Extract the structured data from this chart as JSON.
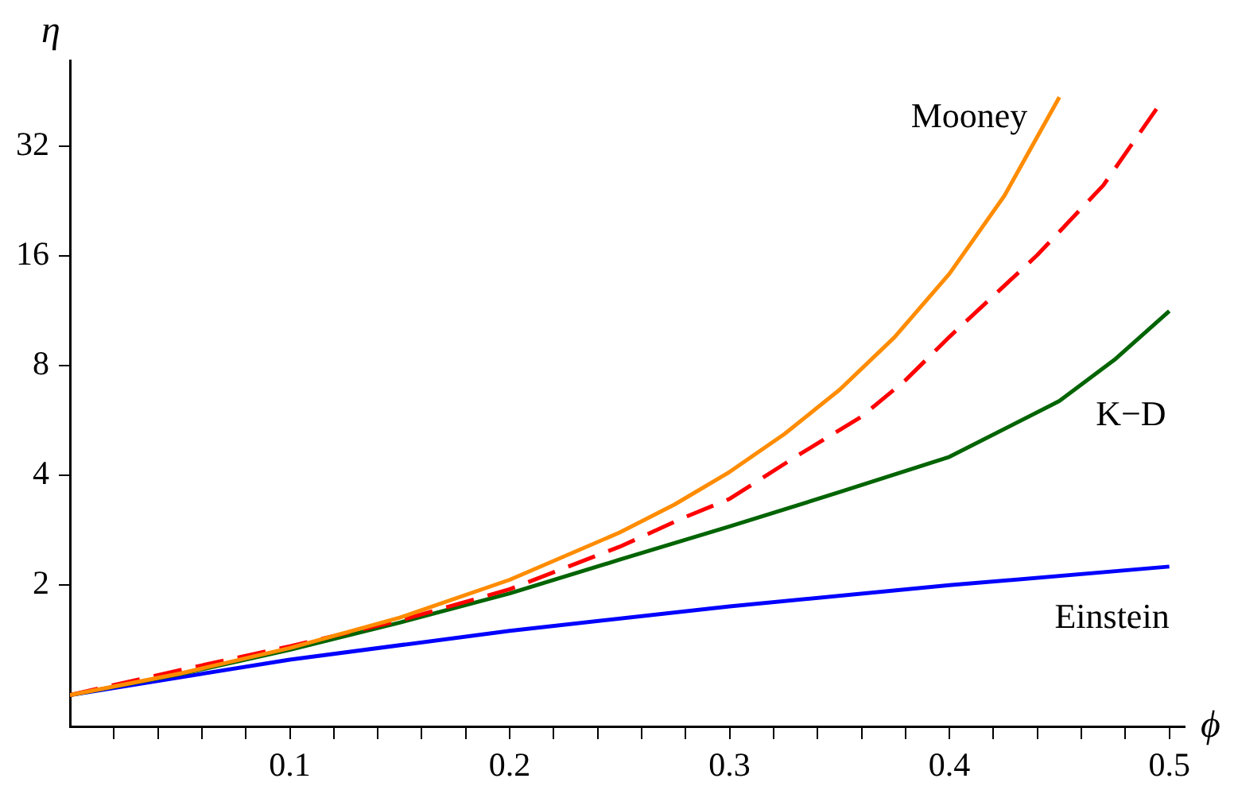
{
  "chart_data": {
    "type": "line",
    "xlabel": "ϕ",
    "ylabel": "η",
    "log": "y",
    "legend": false,
    "grid": false,
    "marker": "none",
    "xlim": [
      0,
      0.507
    ],
    "ylim": [
      0.82,
      55
    ],
    "xticks": [
      {
        "value": 0.02,
        "label": null
      },
      {
        "value": 0.04,
        "label": null
      },
      {
        "value": 0.06,
        "label": null
      },
      {
        "value": 0.08,
        "label": null
      },
      0.1,
      {
        "value": 0.12,
        "label": null
      },
      {
        "value": 0.14,
        "label": null
      },
      {
        "value": 0.16,
        "label": null
      },
      {
        "value": 0.18,
        "label": null
      },
      0.2,
      {
        "value": 0.22,
        "label": null
      },
      {
        "value": 0.24,
        "label": null
      },
      {
        "value": 0.26,
        "label": null
      },
      {
        "value": 0.28,
        "label": null
      },
      0.3,
      {
        "value": 0.32,
        "label": null
      },
      {
        "value": 0.34,
        "label": null
      },
      {
        "value": 0.36,
        "label": null
      },
      {
        "value": 0.38,
        "label": null
      },
      0.4,
      {
        "value": 0.42,
        "label": null
      },
      {
        "value": 0.44,
        "label": null
      },
      {
        "value": 0.46,
        "label": null
      },
      {
        "value": 0.48,
        "label": null
      },
      0.5
    ],
    "yticks": [
      2,
      4,
      8,
      16,
      32
    ],
    "series": [
      {
        "name": "Mooney",
        "color": "#ff8c00",
        "line_style": "solid",
        "x": [
          0,
          0.05,
          0.1,
          0.15,
          0.2,
          0.25,
          0.275,
          0.3,
          0.325,
          0.35,
          0.375,
          0.4,
          0.425,
          0.45
        ],
        "values": [
          1,
          1.145,
          1.345,
          1.63,
          2.07,
          2.79,
          3.33,
          4.09,
          5.2,
          6.87,
          9.57,
          14.3,
          23.4,
          43.6
        ]
      },
      {
        "color": "#ff0000",
        "line_style": "dashed",
        "x": [
          0,
          0.05,
          0.1,
          0.15,
          0.2,
          0.25,
          0.28,
          0.3,
          0.33,
          0.36,
          0.38,
          0.4,
          0.44,
          0.47,
          0.496
        ],
        "values": [
          1,
          1.17,
          1.36,
          1.6,
          1.95,
          2.55,
          3.08,
          3.45,
          4.5,
          5.8,
          7.3,
          9.6,
          16.1,
          25,
          42
        ]
      },
      {
        "name": "K−D",
        "color": "#006400",
        "line_style": "solid",
        "x": [
          0,
          0.05,
          0.1,
          0.15,
          0.2,
          0.25,
          0.3,
          0.35,
          0.4,
          0.45,
          0.475,
          0.5
        ],
        "values": [
          1,
          1.14,
          1.33,
          1.58,
          1.9,
          2.35,
          2.9,
          3.6,
          4.5,
          6.4,
          8.3,
          11.3
        ]
      },
      {
        "name": "Einstein",
        "color": "#0000ff",
        "line_style": "solid",
        "x": [
          0,
          0.1,
          0.2,
          0.3,
          0.4,
          0.5
        ],
        "values": [
          1,
          1.25,
          1.5,
          1.75,
          2,
          2.25
        ]
      }
    ]
  }
}
